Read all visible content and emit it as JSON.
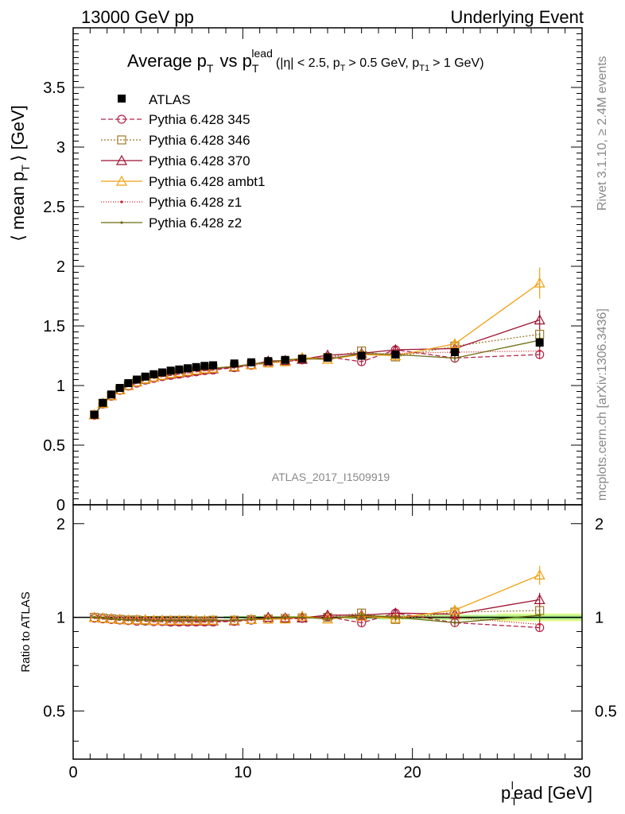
{
  "header": {
    "left": "13000 GeV pp",
    "right": "Underlying Event"
  },
  "side_labels": {
    "rivet": "Rivet 3.1.10, ≥ 2.4M events",
    "mcplots": "mcplots.cern.ch [arXiv:1306.3436]"
  },
  "chart_data": {
    "type": "scatter",
    "title": {
      "main": "Average p",
      "main_sub": "T",
      "vs": "vs p",
      "vs_sub": "T",
      "vs_sup": "lead",
      "cuts": "(|η| < 2.5, p",
      "cuts_sub": "T",
      "cuts_mid": "> 0.5 GeV, p",
      "cuts_sub2": "T1",
      "cuts_end": "> 1 GeV)"
    },
    "watermark": "ATLAS_2017_I1509919",
    "ylabel": {
      "pre": "⟨ mean p",
      "sub": "T",
      "post": "⟩ [GeV]"
    },
    "xlabel": {
      "pre": "p",
      "sub": "T",
      "sup": "l",
      "post": "ead [GeV]"
    },
    "ratio_ylabel": "Ratio to ATLAS",
    "xlim": [
      0,
      30
    ],
    "ylim": [
      0,
      4.0
    ],
    "ratio_ylim": [
      0.35,
      2.3
    ],
    "x_ticks": [
      "0",
      "10",
      "20",
      "30"
    ],
    "y_ticks": [
      "0",
      "0.5",
      "1",
      "1.5",
      "2",
      "2.5",
      "3",
      "3.5"
    ],
    "ratio_ticks": [
      "0.5",
      "1",
      "2"
    ],
    "legend_position": "top-left",
    "x": [
      1.25,
      1.75,
      2.25,
      2.75,
      3.25,
      3.75,
      4.25,
      4.75,
      5.25,
      5.75,
      6.25,
      6.75,
      7.25,
      7.75,
      8.25,
      9.5,
      10.5,
      11.5,
      12.5,
      13.5,
      15,
      17,
      19,
      22.5,
      27.5
    ],
    "data": {
      "name": "ATLAS",
      "values": [
        0.755,
        0.855,
        0.925,
        0.98,
        1.02,
        1.05,
        1.075,
        1.095,
        1.11,
        1.125,
        1.135,
        1.145,
        1.155,
        1.165,
        1.17,
        1.185,
        1.195,
        1.205,
        1.215,
        1.225,
        1.235,
        1.25,
        1.26,
        1.28,
        1.36
      ],
      "errors": [
        0.005,
        0.005,
        0.005,
        0.005,
        0.005,
        0.005,
        0.005,
        0.005,
        0.005,
        0.005,
        0.005,
        0.005,
        0.005,
        0.005,
        0.005,
        0.01,
        0.01,
        0.01,
        0.01,
        0.01,
        0.01,
        0.015,
        0.02,
        0.025,
        0.04
      ]
    },
    "series": [
      {
        "name": "Pythia 6.428 345",
        "color": "#b4244a",
        "dash": "6,3",
        "marker": "circle",
        "values": [
          0.75,
          0.845,
          0.91,
          0.96,
          0.995,
          1.02,
          1.045,
          1.06,
          1.075,
          1.085,
          1.095,
          1.105,
          1.115,
          1.125,
          1.13,
          1.15,
          1.17,
          1.19,
          1.2,
          1.215,
          1.24,
          1.2,
          1.3,
          1.23,
          1.26
        ],
        "errors": [
          0.005,
          0.005,
          0.005,
          0.005,
          0.005,
          0.005,
          0.005,
          0.005,
          0.005,
          0.005,
          0.005,
          0.005,
          0.005,
          0.005,
          0.005,
          0.01,
          0.01,
          0.01,
          0.015,
          0.015,
          0.02,
          0.03,
          0.04,
          0.02,
          0.04
        ]
      },
      {
        "name": "Pythia 6.428 346",
        "color": "#9c7a2c",
        "dash": "2,2",
        "marker": "square",
        "values": [
          0.755,
          0.85,
          0.915,
          0.965,
          1.0,
          1.03,
          1.05,
          1.07,
          1.085,
          1.1,
          1.11,
          1.12,
          1.125,
          1.135,
          1.145,
          1.16,
          1.175,
          1.19,
          1.205,
          1.22,
          1.235,
          1.29,
          1.24,
          1.33,
          1.43
        ],
        "errors": [
          0.005,
          0.005,
          0.005,
          0.005,
          0.005,
          0.005,
          0.005,
          0.005,
          0.005,
          0.005,
          0.005,
          0.005,
          0.005,
          0.005,
          0.005,
          0.01,
          0.01,
          0.01,
          0.015,
          0.015,
          0.02,
          0.03,
          0.03,
          0.04,
          0.05
        ]
      },
      {
        "name": "Pythia 6.428 370",
        "color": "#9e1230",
        "dash": "",
        "marker": "triangle",
        "values": [
          0.755,
          0.85,
          0.915,
          0.965,
          1.0,
          1.03,
          1.055,
          1.07,
          1.085,
          1.095,
          1.105,
          1.115,
          1.125,
          1.135,
          1.14,
          1.155,
          1.175,
          1.205,
          1.21,
          1.22,
          1.255,
          1.27,
          1.3,
          1.31,
          1.55
        ],
        "errors": [
          0.005,
          0.005,
          0.005,
          0.005,
          0.005,
          0.005,
          0.005,
          0.005,
          0.005,
          0.005,
          0.005,
          0.005,
          0.005,
          0.005,
          0.005,
          0.01,
          0.01,
          0.01,
          0.015,
          0.015,
          0.02,
          0.03,
          0.03,
          0.04,
          0.08
        ]
      },
      {
        "name": "Pythia 6.428 ambt1",
        "color": "#f0a010",
        "dash": "",
        "marker": "triangle",
        "values": [
          0.755,
          0.85,
          0.915,
          0.965,
          1.0,
          1.03,
          1.055,
          1.07,
          1.085,
          1.1,
          1.11,
          1.12,
          1.13,
          1.14,
          1.145,
          1.16,
          1.175,
          1.19,
          1.2,
          1.235,
          1.22,
          1.26,
          1.25,
          1.35,
          1.86
        ],
        "errors": [
          0.005,
          0.005,
          0.005,
          0.005,
          0.005,
          0.005,
          0.005,
          0.005,
          0.005,
          0.005,
          0.005,
          0.005,
          0.005,
          0.005,
          0.005,
          0.01,
          0.01,
          0.01,
          0.015,
          0.015,
          0.02,
          0.03,
          0.03,
          0.04,
          0.13
        ]
      },
      {
        "name": "Pythia 6.428 z1",
        "color": "#d0202a",
        "dash": "1,2",
        "marker": "dot",
        "values": [
          0.755,
          0.85,
          0.915,
          0.965,
          1.005,
          1.035,
          1.06,
          1.075,
          1.09,
          1.1,
          1.11,
          1.12,
          1.13,
          1.14,
          1.145,
          1.16,
          1.175,
          1.195,
          1.205,
          1.215,
          1.235,
          1.26,
          1.27,
          1.28,
          1.29
        ],
        "errors": [
          0.005,
          0.005,
          0.005,
          0.005,
          0.005,
          0.005,
          0.005,
          0.005,
          0.005,
          0.005,
          0.005,
          0.005,
          0.005,
          0.005,
          0.005,
          0.01,
          0.01,
          0.01,
          0.015,
          0.015,
          0.02,
          0.03,
          0.03,
          0.04,
          0.04
        ]
      },
      {
        "name": "Pythia 6.428 z2",
        "color": "#6b6b10",
        "dash": "",
        "marker": "dot",
        "values": [
          0.755,
          0.85,
          0.915,
          0.965,
          1.0,
          1.03,
          1.055,
          1.07,
          1.085,
          1.1,
          1.11,
          1.12,
          1.13,
          1.14,
          1.145,
          1.16,
          1.18,
          1.195,
          1.215,
          1.225,
          1.22,
          1.27,
          1.26,
          1.23,
          1.38
        ],
        "errors": [
          0.005,
          0.005,
          0.005,
          0.005,
          0.005,
          0.005,
          0.005,
          0.005,
          0.005,
          0.005,
          0.005,
          0.005,
          0.005,
          0.005,
          0.005,
          0.01,
          0.01,
          0.01,
          0.015,
          0.015,
          0.02,
          0.03,
          0.03,
          0.04,
          0.06
        ]
      }
    ]
  }
}
